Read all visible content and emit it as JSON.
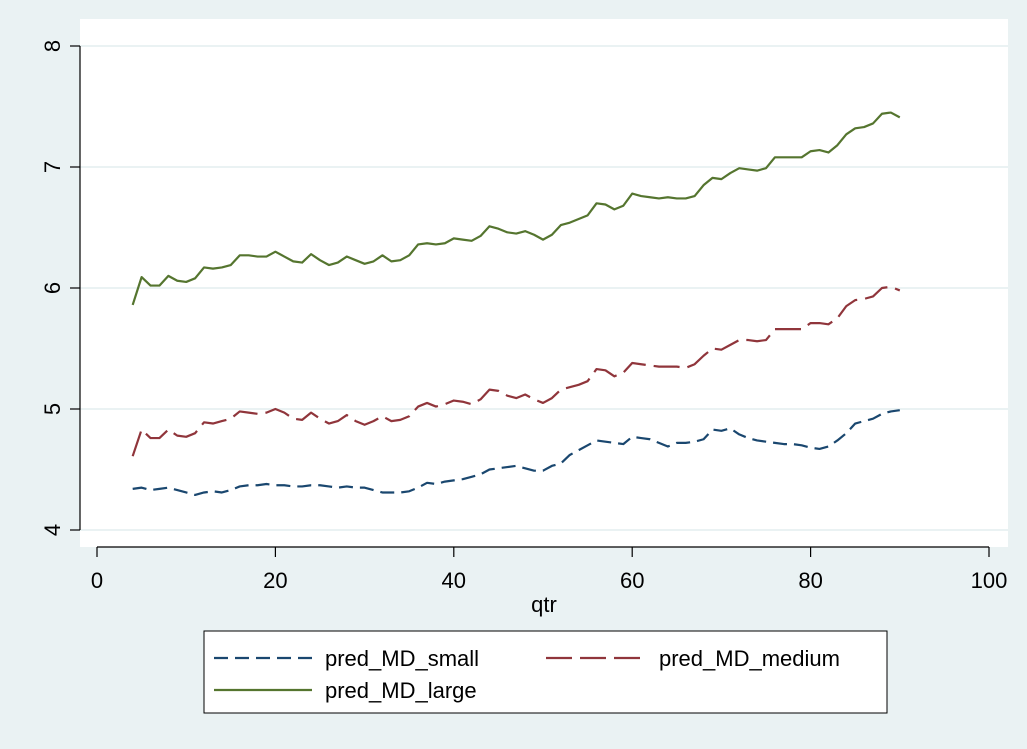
{
  "chart_data": {
    "type": "line",
    "title": "",
    "xlabel": "qtr",
    "ylabel": "",
    "xlim": [
      0,
      100
    ],
    "ylim": [
      4,
      8
    ],
    "xticks": [
      0,
      20,
      40,
      60,
      80,
      100
    ],
    "yticks": [
      4,
      5,
      6,
      7,
      8
    ],
    "x_tick_labels": [
      "0",
      "20",
      "40",
      "60",
      "80",
      "100"
    ],
    "y_tick_labels": [
      "4",
      "5",
      "6",
      "7",
      "8"
    ],
    "grid": "horizontal",
    "legend_position": "bottom",
    "x": [
      4,
      5,
      6,
      7,
      8,
      9,
      10,
      11,
      12,
      13,
      14,
      15,
      16,
      17,
      18,
      19,
      20,
      21,
      22,
      23,
      24,
      25,
      26,
      27,
      28,
      29,
      30,
      31,
      32,
      33,
      34,
      35,
      36,
      37,
      38,
      39,
      40,
      41,
      42,
      43,
      44,
      45,
      46,
      47,
      48,
      49,
      50,
      51,
      52,
      53,
      54,
      55,
      56,
      57,
      58,
      59,
      60,
      61,
      62,
      63,
      64,
      65,
      66,
      67,
      68,
      69,
      70,
      71,
      72,
      73,
      74,
      75,
      76,
      77,
      78,
      79,
      80,
      81,
      82,
      83,
      84,
      85,
      86,
      87,
      88,
      89,
      90
    ],
    "series": [
      {
        "name": "pred_MD_small",
        "color": "#1a476f",
        "dash": "dash",
        "values": [
          4.34,
          4.35,
          4.33,
          4.34,
          4.35,
          4.33,
          4.31,
          4.29,
          4.31,
          4.32,
          4.31,
          4.33,
          4.36,
          4.37,
          4.37,
          4.38,
          4.37,
          4.37,
          4.36,
          4.36,
          4.37,
          4.37,
          4.36,
          4.35,
          4.36,
          4.35,
          4.35,
          4.33,
          4.31,
          4.31,
          4.31,
          4.32,
          4.35,
          4.39,
          4.38,
          4.4,
          4.41,
          4.42,
          4.44,
          4.46,
          4.5,
          4.51,
          4.52,
          4.53,
          4.51,
          4.49,
          4.49,
          4.53,
          4.55,
          4.62,
          4.66,
          4.7,
          4.74,
          4.73,
          4.72,
          4.71,
          4.77,
          4.76,
          4.75,
          4.72,
          4.69,
          4.72,
          4.72,
          4.73,
          4.75,
          4.83,
          4.82,
          4.84,
          4.79,
          4.76,
          4.74,
          4.73,
          4.72,
          4.71,
          4.71,
          4.7,
          4.68,
          4.67,
          4.69,
          4.74,
          4.8,
          4.88,
          4.9,
          4.92,
          4.96,
          4.98,
          4.99
        ]
      },
      {
        "name": "pred_MD_medium",
        "color": "#90353b",
        "dash": "longdash",
        "values": [
          4.61,
          4.83,
          4.76,
          4.76,
          4.83,
          4.78,
          4.77,
          4.8,
          4.89,
          4.88,
          4.9,
          4.92,
          4.98,
          4.97,
          4.96,
          4.97,
          5.0,
          4.97,
          4.92,
          4.91,
          4.97,
          4.92,
          4.88,
          4.9,
          4.95,
          4.9,
          4.87,
          4.9,
          4.94,
          4.9,
          4.91,
          4.94,
          5.02,
          5.05,
          5.02,
          5.04,
          5.07,
          5.06,
          5.04,
          5.08,
          5.16,
          5.15,
          5.11,
          5.09,
          5.12,
          5.08,
          5.05,
          5.09,
          5.16,
          5.18,
          5.2,
          5.23,
          5.33,
          5.32,
          5.27,
          5.3,
          5.38,
          5.37,
          5.36,
          5.35,
          5.35,
          5.35,
          5.34,
          5.37,
          5.44,
          5.5,
          5.49,
          5.53,
          5.57,
          5.57,
          5.56,
          5.57,
          5.66,
          5.66,
          5.66,
          5.66,
          5.71,
          5.71,
          5.7,
          5.75,
          5.85,
          5.9,
          5.91,
          5.93,
          6.0,
          6.01,
          5.98
        ]
      },
      {
        "name": "pred_MD_large",
        "color": "#55752f",
        "dash": "solid",
        "values": [
          5.86,
          6.09,
          6.02,
          6.02,
          6.1,
          6.06,
          6.05,
          6.08,
          6.17,
          6.16,
          6.17,
          6.19,
          6.27,
          6.27,
          6.26,
          6.26,
          6.3,
          6.26,
          6.22,
          6.21,
          6.28,
          6.23,
          6.19,
          6.21,
          6.26,
          6.23,
          6.2,
          6.22,
          6.27,
          6.22,
          6.23,
          6.27,
          6.36,
          6.37,
          6.36,
          6.37,
          6.41,
          6.4,
          6.39,
          6.43,
          6.51,
          6.49,
          6.46,
          6.45,
          6.47,
          6.44,
          6.4,
          6.44,
          6.52,
          6.54,
          6.57,
          6.6,
          6.7,
          6.69,
          6.65,
          6.68,
          6.78,
          6.76,
          6.75,
          6.74,
          6.75,
          6.74,
          6.74,
          6.76,
          6.85,
          6.91,
          6.9,
          6.95,
          6.99,
          6.98,
          6.97,
          6.99,
          7.08,
          7.08,
          7.08,
          7.08,
          7.13,
          7.14,
          7.12,
          7.18,
          7.27,
          7.32,
          7.33,
          7.36,
          7.44,
          7.45,
          7.41
        ]
      }
    ]
  }
}
